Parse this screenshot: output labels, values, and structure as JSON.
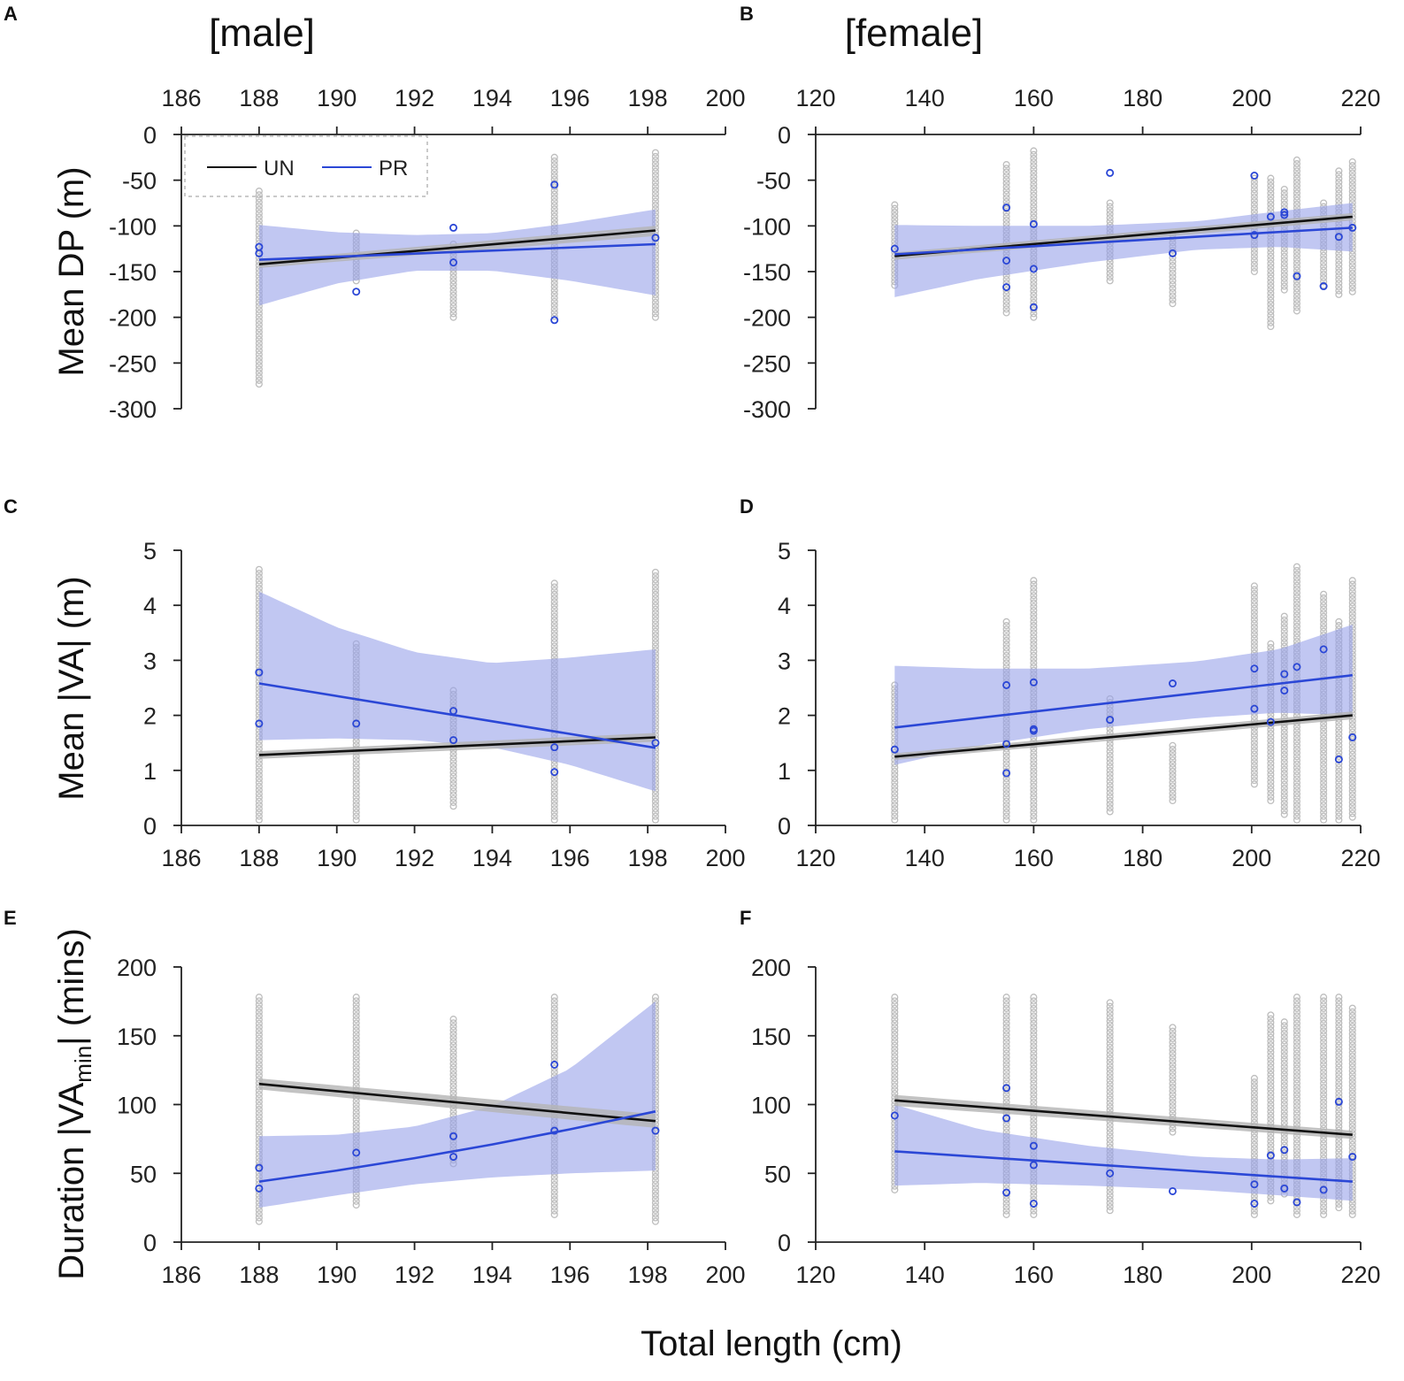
{
  "figure": {
    "headings": {
      "male": "[male]",
      "female": "[female]"
    },
    "ylabels": {
      "dp": "Mean DP (m)",
      "va": "Mean |VA| (m)",
      "dur_pre": "Duration |VA",
      "dur_sub": "min",
      "dur_post": "| (mins)"
    },
    "xlabel": "Total length (cm)",
    "legend": {
      "un": "UN",
      "pr": "PR"
    }
  },
  "colors": {
    "un_line": "#111111",
    "un_band": "#b4b4b4",
    "pr_line": "#2b47d6",
    "pr_band": "#97a1ea",
    "points_gray": "#bdbdbd",
    "points_blue": "#2b47d6",
    "axis": "#222222"
  },
  "chart_data": [
    {
      "panel": "A",
      "type": "scatter",
      "title": "[male]",
      "ylabel": "Mean DP (m)",
      "xlabel": "",
      "xlim": [
        186,
        200
      ],
      "ylim": [
        -300,
        0
      ],
      "xticks": [
        186,
        188,
        190,
        192,
        194,
        196,
        198,
        200
      ],
      "yticks": [
        0,
        -50,
        -100,
        -150,
        -200,
        -250,
        -300
      ],
      "x_axis": "top",
      "legend": "top-left",
      "gray_columns": [
        {
          "x": 188.0,
          "range": [
            -273,
            -62
          ]
        },
        {
          "x": 190.5,
          "range": [
            -160,
            -108
          ]
        },
        {
          "x": 193.0,
          "range": [
            -200,
            -120
          ]
        },
        {
          "x": 195.6,
          "range": [
            -203,
            -25
          ]
        },
        {
          "x": 198.2,
          "range": [
            -200,
            -20
          ]
        }
      ],
      "pr_points": [
        [
          188.0,
          -123
        ],
        [
          188.0,
          -130
        ],
        [
          190.5,
          -172
        ],
        [
          193.0,
          -102
        ],
        [
          193.0,
          -140
        ],
        [
          195.6,
          -55
        ],
        [
          195.6,
          -203
        ],
        [
          198.2,
          -113
        ]
      ],
      "un_fit": {
        "x": [
          188,
          198.2
        ],
        "y": [
          -142,
          -105
        ]
      },
      "un_band": {
        "x": [
          188,
          198.2
        ],
        "lower": [
          -146,
          -111
        ],
        "upper": [
          -138,
          -100
        ]
      },
      "pr_fit": {
        "x": [
          188,
          198.2
        ],
        "y": [
          -137,
          -120
        ]
      },
      "pr_band": {
        "x": [
          188,
          190,
          192,
          194,
          196,
          198.2
        ],
        "lower": [
          -187,
          -163,
          -149,
          -149,
          -160,
          -176
        ],
        "upper": [
          -99,
          -107,
          -110,
          -108,
          -97,
          -82
        ]
      }
    },
    {
      "panel": "B",
      "type": "scatter",
      "title": "[female]",
      "ylabel": "",
      "xlabel": "",
      "xlim": [
        120,
        220
      ],
      "ylim": [
        -300,
        0
      ],
      "xticks": [
        120,
        140,
        160,
        180,
        200,
        220
      ],
      "yticks": [
        0,
        -50,
        -100,
        -150,
        -200,
        -250,
        -300
      ],
      "x_axis": "top",
      "gray_columns": [
        {
          "x": 134.5,
          "range": [
            -165,
            -77
          ]
        },
        {
          "x": 155,
          "range": [
            -195,
            -33
          ]
        },
        {
          "x": 160,
          "range": [
            -200,
            -18
          ]
        },
        {
          "x": 174,
          "range": [
            -160,
            -75
          ]
        },
        {
          "x": 185.5,
          "range": [
            -185,
            -110
          ]
        },
        {
          "x": 200.5,
          "range": [
            -150,
            -48
          ]
        },
        {
          "x": 203.5,
          "range": [
            -210,
            -48
          ]
        },
        {
          "x": 206,
          "range": [
            -170,
            -60
          ]
        },
        {
          "x": 208.3,
          "range": [
            -193,
            -28
          ]
        },
        {
          "x": 213.2,
          "range": [
            -165,
            -75
          ]
        },
        {
          "x": 216,
          "range": [
            -175,
            -40
          ]
        },
        {
          "x": 218.5,
          "range": [
            -172,
            -30
          ]
        }
      ],
      "pr_points": [
        [
          134.5,
          -125
        ],
        [
          155,
          -80
        ],
        [
          155,
          -138
        ],
        [
          155,
          -167
        ],
        [
          160,
          -98
        ],
        [
          160,
          -147
        ],
        [
          160,
          -189
        ],
        [
          174,
          -42
        ],
        [
          185.5,
          -130
        ],
        [
          200.5,
          -45
        ],
        [
          200.5,
          -110
        ],
        [
          203.5,
          -90
        ],
        [
          206,
          -85
        ],
        [
          206,
          -88
        ],
        [
          208.3,
          -155
        ],
        [
          213.2,
          -166
        ],
        [
          216,
          -112
        ],
        [
          218.5,
          -102
        ]
      ],
      "un_fit": {
        "x": [
          134.5,
          218.5
        ],
        "y": [
          -133,
          -90
        ]
      },
      "un_band": {
        "x": [
          134.5,
          218.5
        ],
        "lower": [
          -137,
          -94
        ],
        "upper": [
          -129,
          -86
        ]
      },
      "pr_fit": {
        "x": [
          134.5,
          218.5
        ],
        "y": [
          -131,
          -102
        ]
      },
      "pr_band": {
        "x": [
          134.5,
          150,
          170,
          190,
          205,
          218.5
        ],
        "lower": [
          -178,
          -158,
          -140,
          -126,
          -123,
          -128
        ],
        "upper": [
          -99,
          -100,
          -100,
          -95,
          -84,
          -75
        ]
      }
    },
    {
      "panel": "C",
      "type": "scatter",
      "title": "",
      "ylabel": "Mean |VA| (m)",
      "xlabel": "",
      "xlim": [
        186,
        200
      ],
      "ylim": [
        0,
        5
      ],
      "xticks": [
        186,
        188,
        190,
        192,
        194,
        196,
        198,
        200
      ],
      "yticks": [
        0,
        1,
        2,
        3,
        4,
        5
      ],
      "x_axis": "bottom",
      "gray_columns": [
        {
          "x": 188.0,
          "range": [
            0.1,
            4.65
          ]
        },
        {
          "x": 190.5,
          "range": [
            0.1,
            3.3
          ]
        },
        {
          "x": 193.0,
          "range": [
            0.35,
            2.45
          ]
        },
        {
          "x": 195.6,
          "range": [
            0.1,
            4.4
          ]
        },
        {
          "x": 198.2,
          "range": [
            0.1,
            4.6
          ]
        }
      ],
      "pr_points": [
        [
          188.0,
          2.78
        ],
        [
          188.0,
          1.85
        ],
        [
          190.5,
          1.85
        ],
        [
          193.0,
          2.08
        ],
        [
          193.0,
          1.55
        ],
        [
          195.6,
          1.42
        ],
        [
          195.6,
          0.97
        ],
        [
          198.2,
          1.5
        ]
      ],
      "un_fit": {
        "x": [
          188,
          198.2
        ],
        "y": [
          1.28,
          1.6
        ]
      },
      "un_band": {
        "x": [
          188,
          198.2
        ],
        "lower": [
          1.21,
          1.52
        ],
        "upper": [
          1.35,
          1.68
        ]
      },
      "pr_fit": {
        "x": [
          188,
          198.2
        ],
        "y": [
          2.58,
          1.41
        ]
      },
      "pr_band": {
        "x": [
          188,
          190,
          192,
          194,
          196,
          198.2
        ],
        "lower": [
          1.55,
          1.58,
          1.55,
          1.42,
          1.1,
          0.62
        ],
        "upper": [
          4.25,
          3.6,
          3.15,
          2.95,
          3.05,
          3.2
        ]
      }
    },
    {
      "panel": "D",
      "type": "scatter",
      "title": "",
      "ylabel": "",
      "xlabel": "",
      "xlim": [
        120,
        220
      ],
      "ylim": [
        0,
        5
      ],
      "xticks": [
        120,
        140,
        160,
        180,
        200,
        220
      ],
      "yticks": [
        0,
        1,
        2,
        3,
        4,
        5
      ],
      "x_axis": "bottom",
      "gray_columns": [
        {
          "x": 134.5,
          "range": [
            0.1,
            2.55
          ]
        },
        {
          "x": 155,
          "range": [
            0.1,
            3.7
          ]
        },
        {
          "x": 160,
          "range": [
            0.1,
            4.45
          ]
        },
        {
          "x": 174,
          "range": [
            0.25,
            2.3
          ]
        },
        {
          "x": 185.5,
          "range": [
            0.45,
            1.45
          ]
        },
        {
          "x": 200.5,
          "range": [
            0.75,
            4.35
          ]
        },
        {
          "x": 203.5,
          "range": [
            0.45,
            3.3
          ]
        },
        {
          "x": 206,
          "range": [
            0.2,
            3.8
          ]
        },
        {
          "x": 208.3,
          "range": [
            0.1,
            4.7
          ]
        },
        {
          "x": 213.2,
          "range": [
            0.1,
            4.2
          ]
        },
        {
          "x": 216,
          "range": [
            0.1,
            3.7
          ]
        },
        {
          "x": 218.5,
          "range": [
            0.15,
            4.45
          ]
        }
      ],
      "pr_points": [
        [
          134.5,
          1.38
        ],
        [
          155,
          2.55
        ],
        [
          155,
          1.48
        ],
        [
          155,
          0.95
        ],
        [
          160,
          2.6
        ],
        [
          160,
          1.75
        ],
        [
          160,
          1.72
        ],
        [
          174,
          1.92
        ],
        [
          185.5,
          2.58
        ],
        [
          200.5,
          2.85
        ],
        [
          200.5,
          2.12
        ],
        [
          203.5,
          1.88
        ],
        [
          206,
          2.75
        ],
        [
          206,
          2.45
        ],
        [
          208.3,
          2.88
        ],
        [
          213.2,
          3.2
        ],
        [
          216,
          1.2
        ],
        [
          218.5,
          1.6
        ]
      ],
      "un_fit": {
        "x": [
          134.5,
          218.5
        ],
        "y": [
          1.25,
          2.0
        ]
      },
      "un_band": {
        "x": [
          134.5,
          218.5
        ],
        "lower": [
          1.19,
          1.93
        ],
        "upper": [
          1.31,
          2.07
        ]
      },
      "pr_fit": {
        "x": [
          134.5,
          218.5
        ],
        "y": [
          1.78,
          2.73
        ]
      },
      "pr_band": {
        "x": [
          134.5,
          150,
          170,
          190,
          205,
          218.5
        ],
        "lower": [
          1.1,
          1.45,
          1.75,
          1.95,
          2.05,
          2.0
        ],
        "upper": [
          2.9,
          2.85,
          2.85,
          2.98,
          3.2,
          3.65
        ]
      }
    },
    {
      "panel": "E",
      "type": "scatter",
      "title": "",
      "ylabel": "Duration |VAmin| (mins)",
      "xlabel": "",
      "xlim": [
        186,
        200
      ],
      "ylim": [
        0,
        200
      ],
      "xticks": [
        186,
        188,
        190,
        192,
        194,
        196,
        198,
        200
      ],
      "yticks": [
        0,
        50,
        100,
        150,
        200
      ],
      "x_axis": "bottom",
      "gray_columns": [
        {
          "x": 188.0,
          "range": [
            15,
            178
          ]
        },
        {
          "x": 190.5,
          "range": [
            27,
            178
          ]
        },
        {
          "x": 193.0,
          "range": [
            57,
            162
          ]
        },
        {
          "x": 195.6,
          "range": [
            20,
            178
          ]
        },
        {
          "x": 198.2,
          "range": [
            15,
            178
          ]
        }
      ],
      "pr_points": [
        [
          188.0,
          54
        ],
        [
          188.0,
          39
        ],
        [
          190.5,
          65
        ],
        [
          193.0,
          77
        ],
        [
          193.0,
          62
        ],
        [
          195.6,
          129
        ],
        [
          195.6,
          81
        ],
        [
          198.2,
          81
        ]
      ],
      "un_fit": {
        "x": [
          188,
          198.2
        ],
        "y": [
          115,
          88
        ]
      },
      "un_band": {
        "x": [
          188,
          198.2
        ],
        "lower": [
          111,
          83
        ],
        "upper": [
          119,
          93
        ]
      },
      "pr_fit": {
        "x": [
          188,
          190,
          192,
          194,
          196,
          198.2
        ],
        "y": [
          44,
          52,
          61,
          71,
          82,
          95
        ]
      },
      "pr_band": {
        "x": [
          188,
          190,
          192,
          194,
          196,
          198.2
        ],
        "lower": [
          25,
          34,
          42,
          47,
          50,
          52
        ],
        "upper": [
          77,
          78,
          84,
          99,
          126,
          175
        ]
      }
    },
    {
      "panel": "F",
      "type": "scatter",
      "title": "",
      "ylabel": "",
      "xlabel": "Total length (cm)",
      "xlim": [
        120,
        220
      ],
      "ylim": [
        0,
        200
      ],
      "xticks": [
        120,
        140,
        160,
        180,
        200,
        220
      ],
      "yticks": [
        0,
        50,
        100,
        150,
        200
      ],
      "x_axis": "bottom",
      "gray_columns": [
        {
          "x": 134.5,
          "range": [
            38,
            178
          ]
        },
        {
          "x": 155,
          "range": [
            20,
            178
          ]
        },
        {
          "x": 160,
          "range": [
            20,
            178
          ]
        },
        {
          "x": 174,
          "range": [
            23,
            174
          ]
        },
        {
          "x": 185.5,
          "range": [
            80,
            156
          ]
        },
        {
          "x": 200.5,
          "range": [
            20,
            119
          ]
        },
        {
          "x": 203.5,
          "range": [
            30,
            165
          ]
        },
        {
          "x": 206,
          "range": [
            35,
            160
          ]
        },
        {
          "x": 208.3,
          "range": [
            20,
            178
          ]
        },
        {
          "x": 213.2,
          "range": [
            20,
            178
          ]
        },
        {
          "x": 216,
          "range": [
            25,
            178
          ]
        },
        {
          "x": 218.5,
          "range": [
            20,
            170
          ]
        }
      ],
      "pr_points": [
        [
          134.5,
          92
        ],
        [
          155,
          112
        ],
        [
          155,
          90
        ],
        [
          155,
          36
        ],
        [
          160,
          70
        ],
        [
          160,
          56
        ],
        [
          160,
          28
        ],
        [
          174,
          50
        ],
        [
          185.5,
          37
        ],
        [
          200.5,
          42
        ],
        [
          200.5,
          28
        ],
        [
          203.5,
          63
        ],
        [
          206,
          67
        ],
        [
          206,
          39
        ],
        [
          208.3,
          29
        ],
        [
          213.2,
          38
        ],
        [
          216,
          102
        ],
        [
          218.5,
          62
        ]
      ],
      "un_fit": {
        "x": [
          134.5,
          218.5
        ],
        "y": [
          103,
          78
        ]
      },
      "un_band": {
        "x": [
          134.5,
          218.5
        ],
        "lower": [
          99,
          75
        ],
        "upper": [
          107,
          81
        ]
      },
      "pr_fit": {
        "x": [
          134.5,
          218.5
        ],
        "y": [
          66,
          44
        ]
      },
      "pr_band": {
        "x": [
          134.5,
          150,
          170,
          190,
          205,
          218.5
        ],
        "lower": [
          41,
          43,
          41,
          38,
          34,
          30
        ],
        "upper": [
          100,
          82,
          70,
          62,
          60,
          61
        ]
      }
    }
  ]
}
